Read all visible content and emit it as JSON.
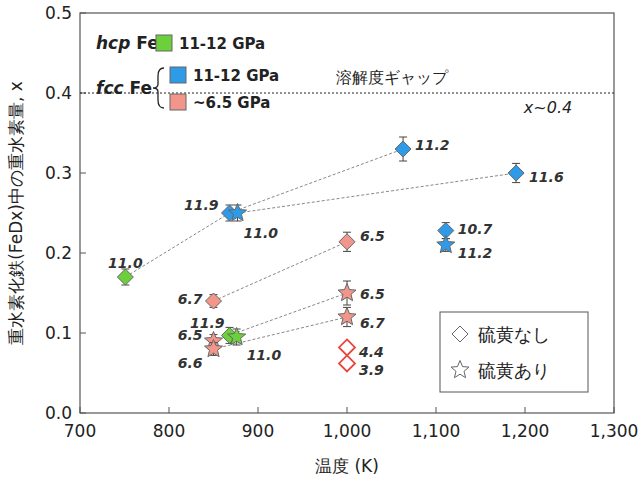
{
  "chart_data": {
    "type": "scatter",
    "x_label": "温度 (K)",
    "y_label": "重水素化鉄(FeDx)中の重水素量, x",
    "xlim": [
      700,
      1300
    ],
    "xticks": [
      700,
      800,
      900,
      {
        "value": 1000,
        "label": "1,000"
      },
      {
        "value": 1100,
        "label": "1,100"
      },
      {
        "value": 1200,
        "label": "1,200"
      },
      {
        "value": 1300,
        "label": "1,300"
      }
    ],
    "ylim": [
      0,
      0.5
    ],
    "yticks": [
      {
        "value": 0,
        "label": "0.0"
      },
      0.1,
      0.2,
      0.3,
      0.4,
      0.5
    ],
    "grid": false,
    "legend": "upper left",
    "legend_groups": [
      {
        "label": "hcp Fe",
        "entries": [
          {
            "text": "11-12 GPa",
            "color": "#6ccf3c"
          }
        ]
      },
      {
        "label": "fcc Fe",
        "entries": [
          {
            "text": "11-12 GPa",
            "color": "#2f9be8"
          },
          {
            "text": "~6.5 GPa",
            "color": "#f2968c"
          }
        ]
      }
    ],
    "marker_legend": [
      {
        "marker": "diamond",
        "text": "硫黄なし"
      },
      {
        "marker": "star",
        "text": "硫黄あり"
      }
    ],
    "reference_line": {
      "y": 0.4,
      "labels": [
        "溶解度ギャップ",
        "x~0.4"
      ]
    },
    "series": [
      {
        "color": "#6ccf3c",
        "marker": "diamond",
        "x": [
          751,
          868
        ],
        "values": [
          0.17,
          0.097
        ],
        "errors": [
          0.01,
          0.01
        ],
        "labels": [
          "11.0",
          "11.9"
        ]
      },
      {
        "color": "#6ccf3c",
        "marker": "star",
        "x": [
          876
        ],
        "values": [
          0.095
        ],
        "errors": [
          0.01
        ],
        "labels": [
          "11.0"
        ]
      },
      {
        "color": "#2f9be8",
        "marker": "diamond",
        "x": [
          868,
          1063,
          1190,
          1111
        ],
        "values": [
          0.25,
          0.33,
          0.3,
          0.228
        ],
        "errors": [
          0.01,
          0.015,
          0.012,
          0.01
        ],
        "labels": [
          "11.9",
          "11.2",
          "11.6",
          "10.7"
        ]
      },
      {
        "color": "#2f9be8",
        "marker": "star",
        "x": [
          877,
          1111
        ],
        "values": [
          0.25,
          0.21
        ],
        "errors": [
          0.01,
          0.008
        ],
        "labels": [
          "11.0",
          "11.2"
        ]
      },
      {
        "color": "#f2968c",
        "marker": "diamond",
        "x": [
          850,
          1000
        ],
        "values": [
          0.14,
          0.214
        ],
        "errors": [
          0.008,
          0.012
        ],
        "labels": [
          "6.7",
          "6.5"
        ]
      },
      {
        "color": "#f2968c",
        "marker": "star",
        "x": [
          850,
          850,
          1000,
          1000
        ],
        "values": [
          0.09,
          0.08,
          0.15,
          0.12
        ],
        "errors": [
          0.008,
          0.008,
          0.015,
          0.012
        ],
        "labels": [
          "6.5",
          "6.6",
          "6.5",
          "6.7"
        ]
      },
      {
        "color": "#e8453c",
        "marker": "open-diamond",
        "x": [
          1000,
          1000
        ],
        "values": [
          0.082,
          0.062
        ],
        "errors": [
          0,
          0
        ],
        "labels": [
          "4.4",
          "3.9"
        ]
      }
    ],
    "links": [
      [
        [
          0,
          0
        ],
        [
          2,
          0
        ]
      ],
      [
        [
          2,
          0
        ],
        [
          2,
          1
        ]
      ],
      [
        [
          3,
          0
        ],
        [
          2,
          2
        ]
      ],
      [
        [
          4,
          0
        ],
        [
          4,
          1
        ]
      ],
      [
        [
          5,
          0
        ],
        [
          5,
          2
        ]
      ],
      [
        [
          5,
          1
        ],
        [
          5,
          3
        ]
      ]
    ]
  }
}
